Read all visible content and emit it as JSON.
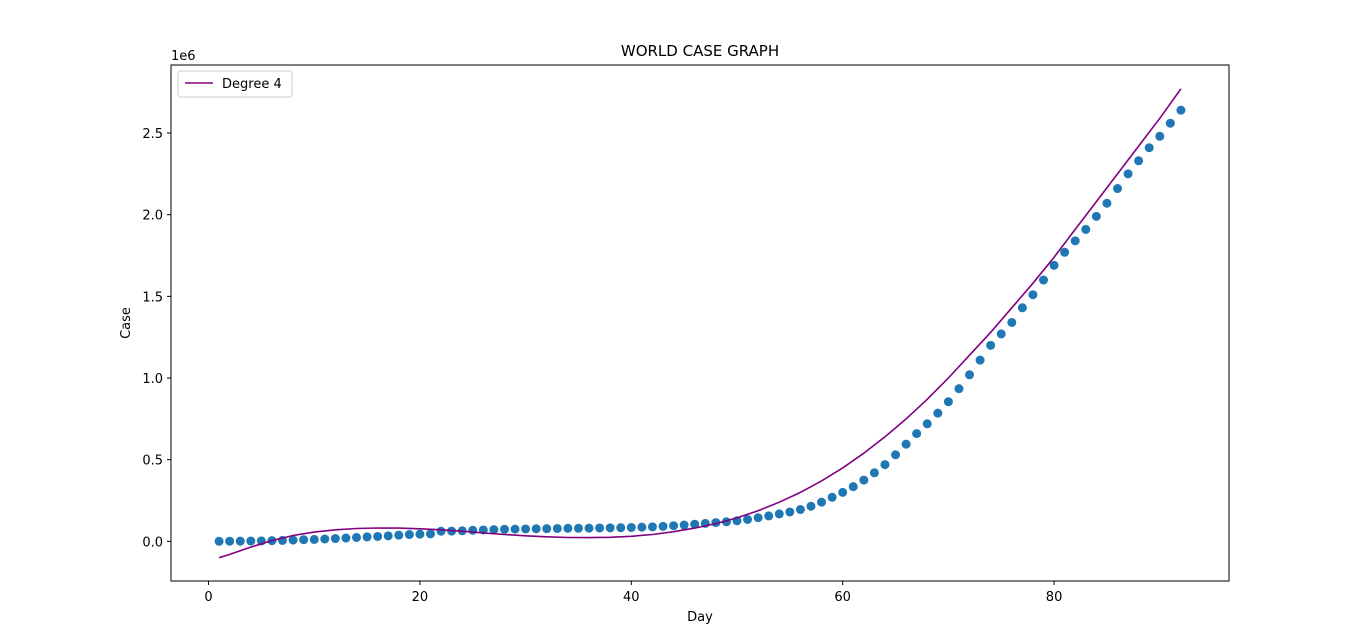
{
  "chart_data": {
    "type": "scatter",
    "title": "WORLD CASE GRAPH",
    "xlabel": "Day",
    "ylabel": "Case",
    "y_offset_label": "1e6",
    "xlim": [
      -3.55,
      96.55
    ],
    "ylim": [
      -0.2426,
      2.9164
    ],
    "y_scale": 1000000,
    "x_ticks": [
      0,
      20,
      40,
      60,
      80
    ],
    "x_tick_labels": [
      "0",
      "20",
      "40",
      "60",
      "80"
    ],
    "y_ticks": [
      0.0,
      0.5,
      1.0,
      1.5,
      2.0,
      2.5
    ],
    "y_tick_labels": [
      "0.0",
      "0.5",
      "1.0",
      "1.5",
      "2.0",
      "2.5"
    ],
    "grid": false,
    "legend": {
      "position": "top-left",
      "entries": [
        "Degree 4"
      ]
    },
    "series": [
      {
        "kind": "scatter",
        "color": "#1f77b4",
        "x": [
          1,
          2,
          3,
          4,
          5,
          6,
          7,
          8,
          9,
          10,
          11,
          12,
          13,
          14,
          15,
          16,
          17,
          18,
          19,
          20,
          21,
          22,
          23,
          24,
          25,
          26,
          27,
          28,
          29,
          30,
          31,
          32,
          33,
          34,
          35,
          36,
          37,
          38,
          39,
          40,
          41,
          42,
          43,
          44,
          45,
          46,
          47,
          48,
          49,
          50,
          51,
          52,
          53,
          54,
          55,
          56,
          57,
          58,
          59,
          60,
          61,
          62,
          63,
          64,
          65,
          66,
          67,
          68,
          69,
          70,
          71,
          72,
          73,
          74,
          75,
          76,
          77,
          78,
          79,
          80,
          81,
          82,
          83,
          84,
          85,
          86,
          87,
          88,
          89,
          90,
          91,
          92
        ],
        "y": [
          0.0006,
          0.0009,
          0.0012,
          0.002,
          0.0029,
          0.0045,
          0.006,
          0.008,
          0.01,
          0.012,
          0.0145,
          0.0175,
          0.0205,
          0.024,
          0.0275,
          0.03,
          0.034,
          0.038,
          0.042,
          0.044,
          0.046,
          0.062,
          0.063,
          0.065,
          0.068,
          0.07,
          0.072,
          0.074,
          0.075,
          0.076,
          0.077,
          0.078,
          0.079,
          0.08,
          0.08,
          0.081,
          0.082,
          0.083,
          0.084,
          0.085,
          0.087,
          0.089,
          0.092,
          0.096,
          0.1,
          0.105,
          0.11,
          0.115,
          0.12,
          0.126,
          0.134,
          0.145,
          0.156,
          0.168,
          0.18,
          0.195,
          0.215,
          0.24,
          0.27,
          0.3,
          0.335,
          0.375,
          0.42,
          0.47,
          0.53,
          0.595,
          0.66,
          0.72,
          0.785,
          0.855,
          0.935,
          1.02,
          1.11,
          1.2,
          1.27,
          1.34,
          1.43,
          1.51,
          1.6,
          1.69,
          1.77,
          1.84,
          1.91,
          1.99,
          2.07,
          2.16,
          2.25,
          2.33,
          2.41,
          2.48,
          2.56,
          2.64
        ]
      },
      {
        "kind": "line",
        "name": "Degree 4",
        "color": "#800080",
        "x": [
          1,
          2,
          4,
          6,
          8,
          10,
          12,
          14,
          16,
          18,
          20,
          22,
          24,
          26,
          28,
          30,
          32,
          34,
          36,
          38,
          40,
          42,
          44,
          46,
          48,
          50,
          52,
          54,
          56,
          58,
          60,
          62,
          64,
          66,
          68,
          70,
          72,
          74,
          76,
          78,
          80,
          82,
          84,
          86,
          88,
          90,
          92
        ],
        "y": [
          -0.1,
          -0.08,
          -0.035,
          0.005,
          0.036,
          0.057,
          0.071,
          0.079,
          0.082,
          0.081,
          0.077,
          0.071,
          0.062,
          0.052,
          0.042,
          0.034,
          0.028,
          0.024,
          0.023,
          0.025,
          0.031,
          0.042,
          0.059,
          0.081,
          0.109,
          0.144,
          0.188,
          0.24,
          0.3,
          0.37,
          0.45,
          0.54,
          0.64,
          0.75,
          0.87,
          1.0,
          1.14,
          1.28,
          1.43,
          1.58,
          1.74,
          1.91,
          2.08,
          2.25,
          2.42,
          2.59,
          2.77
        ]
      }
    ]
  }
}
